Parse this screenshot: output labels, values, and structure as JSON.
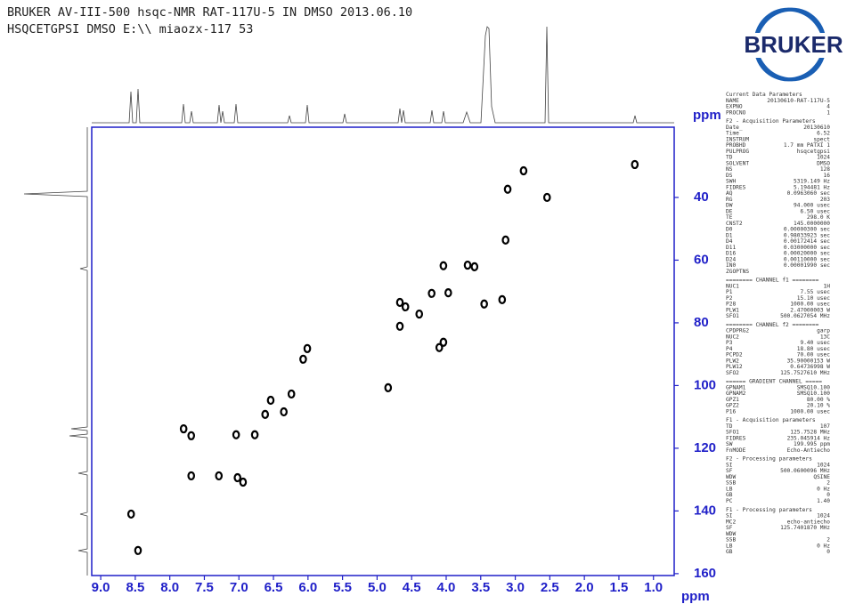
{
  "chart_data": {
    "type": "scatter",
    "title": "BRUKER AV-III-500 hsqc-NMR RAT-117U-5 IN DMSO 2013.06.10",
    "subtitle": "HSQCETGPSI DMSO E:\\\\ miaozx-117 53",
    "logo": "BRUKER",
    "xlabel": "ppm",
    "ylabel": "ppm",
    "color": "#000000",
    "axis_color": "#1f1fc8",
    "xlim": [
      9.13,
      0.7
    ],
    "ylim": [
      17.6,
      160.6
    ],
    "xticks": [
      {
        "value": 9,
        "label": "9.0"
      },
      8.5,
      {
        "value": 8,
        "label": "8.0"
      },
      7.5,
      {
        "value": 7,
        "label": "7.0"
      },
      6.5,
      {
        "value": 6,
        "label": "6.0"
      },
      5.5,
      {
        "value": 5,
        "label": "5.0"
      },
      4.5,
      {
        "value": 4,
        "label": "4.0"
      },
      3.5,
      {
        "value": 3,
        "label": "3.0"
      },
      2.5,
      {
        "value": 2,
        "label": "2.0"
      },
      1.5,
      {
        "value": 1,
        "label": "1.0"
      }
    ],
    "yticks": [
      40,
      60,
      80,
      100,
      120,
      140,
      160
    ],
    "x": [
      1.27,
      2.88,
      2.54,
      3.11,
      3.14,
      3.69,
      3.59,
      4.04,
      3.97,
      4.21,
      3.19,
      3.45,
      4.67,
      4.59,
      4.39,
      4.67,
      4.04,
      4.1,
      6.01,
      6.07,
      4.84,
      6.24,
      6.54,
      6.35,
      6.62,
      7.8,
      7.69,
      7.04,
      6.77,
      7.29,
      7.69,
      7.02,
      6.94,
      8.56,
      8.46
    ],
    "values": [
      29.5,
      31.5,
      40,
      37.4,
      53.6,
      61.6,
      62.1,
      61.8,
      70.4,
      70.6,
      72.6,
      74,
      73.5,
      74.9,
      77.2,
      81.1,
      86.2,
      87.9,
      88.2,
      91.6,
      100.7,
      102.7,
      104.7,
      108.4,
      109.2,
      113.8,
      116,
      115.7,
      115.7,
      128.8,
      128.8,
      129.4,
      130.8,
      141,
      152.6
    ],
    "parameters": [
      {
        "heading": "Current Data Parameters",
        "rows": [
          [
            "NAME",
            "20130610-RAT-117U-5"
          ],
          [
            "EXPNO",
            "4"
          ],
          [
            "PROCNO",
            "1"
          ]
        ]
      },
      {
        "heading": "F2 - Acquisition Parameters",
        "rows": [
          [
            "Date_",
            "20130610"
          ],
          [
            "Time",
            "6.52"
          ],
          [
            "INSTRUM",
            "spect"
          ],
          [
            "PROBHD",
            "1.7 mm PATXI 1"
          ],
          [
            "PULPROG",
            "hsqcetgpsi"
          ],
          [
            "TD",
            "1024"
          ],
          [
            "SOLVENT",
            "DMSO"
          ],
          [
            "NS",
            "128"
          ],
          [
            "DS",
            "16"
          ],
          [
            "SWH",
            "5319.149 Hz"
          ],
          [
            "FIDRES",
            "5.194481 Hz"
          ],
          [
            "AQ",
            "0.0963060 sec"
          ],
          [
            "RG",
            "203"
          ],
          [
            "DW",
            "94.000 usec"
          ],
          [
            "DE",
            "6.50 usec"
          ],
          [
            "TE",
            "298.0 K"
          ],
          [
            "CNST2",
            "145.0000000"
          ],
          [
            "D0",
            "0.00000300 sec"
          ],
          [
            "D1",
            "0.98033923 sec"
          ],
          [
            "D4",
            "0.00172414 sec"
          ],
          [
            "D11",
            "0.03000000 sec"
          ],
          [
            "D16",
            "0.00020000 sec"
          ],
          [
            "D24",
            "0.00110000 sec"
          ],
          [
            "IN0",
            "0.00001990 sec"
          ],
          [
            "ZGOPTNS",
            ""
          ]
        ]
      },
      {
        "heading": "======== CHANNEL f1 ========",
        "rows": [
          [
            "NUC1",
            "1H"
          ],
          [
            "P1",
            "7.55 usec"
          ],
          [
            "P2",
            "15.10 usec"
          ],
          [
            "P28",
            "1000.00 usec"
          ],
          [
            "PLW1",
            "2.47000003 W"
          ],
          [
            "SFO1",
            "500.0627054 MHz"
          ]
        ]
      },
      {
        "heading": "======== CHANNEL f2 ========",
        "rows": [
          [
            "CPDPRG2",
            "garp"
          ],
          [
            "NUC2",
            "13C"
          ],
          [
            "P3",
            "9.40 usec"
          ],
          [
            "P4",
            "18.80 usec"
          ],
          [
            "PCPD2",
            "70.00 usec"
          ],
          [
            "PLW2",
            "35.90000153 W"
          ],
          [
            "PLW12",
            "0.64736998 W"
          ],
          [
            "SFO2",
            "125.7527610 MHz"
          ]
        ]
      },
      {
        "heading": "====== GRADIENT CHANNEL =====",
        "rows": [
          [
            "GPNAM1",
            "SMSQ10.100"
          ],
          [
            "GPNAM2",
            "SMSQ10.100"
          ],
          [
            "GPZ1",
            "80.00 %"
          ],
          [
            "GPZ2",
            "20.10 %"
          ],
          [
            "P16",
            "1000.00 usec"
          ]
        ]
      },
      {
        "heading": "F1 - Acquisition parameters",
        "rows": [
          [
            "TD",
            "107"
          ],
          [
            "SFO1",
            "125.7528 MHz"
          ],
          [
            "FIDRES",
            "235.045914 Hz"
          ],
          [
            "SW",
            "199.995 ppm"
          ],
          [
            "FnMODE",
            "Echo-Antiecho"
          ]
        ]
      },
      {
        "heading": "F2 - Processing parameters",
        "rows": [
          [
            "SI",
            "1024"
          ],
          [
            "SF",
            "500.0600096 MHz"
          ],
          [
            "WDW",
            "QSINE"
          ],
          [
            "SSB",
            "2"
          ],
          [
            "LB",
            "0 Hz"
          ],
          [
            "GB",
            "0"
          ],
          [
            "PC",
            "1.40"
          ]
        ]
      },
      {
        "heading": "F1 - Processing parameters",
        "rows": [
          [
            "SI",
            "1024"
          ],
          [
            "MC2",
            "echo-antiecho"
          ],
          [
            "SF",
            "125.7401870 MHz"
          ],
          [
            "WDW",
            ""
          ],
          [
            "SSB",
            "2"
          ],
          [
            "LB",
            "0 Hz"
          ],
          [
            "GB",
            "0"
          ]
        ]
      }
    ]
  }
}
